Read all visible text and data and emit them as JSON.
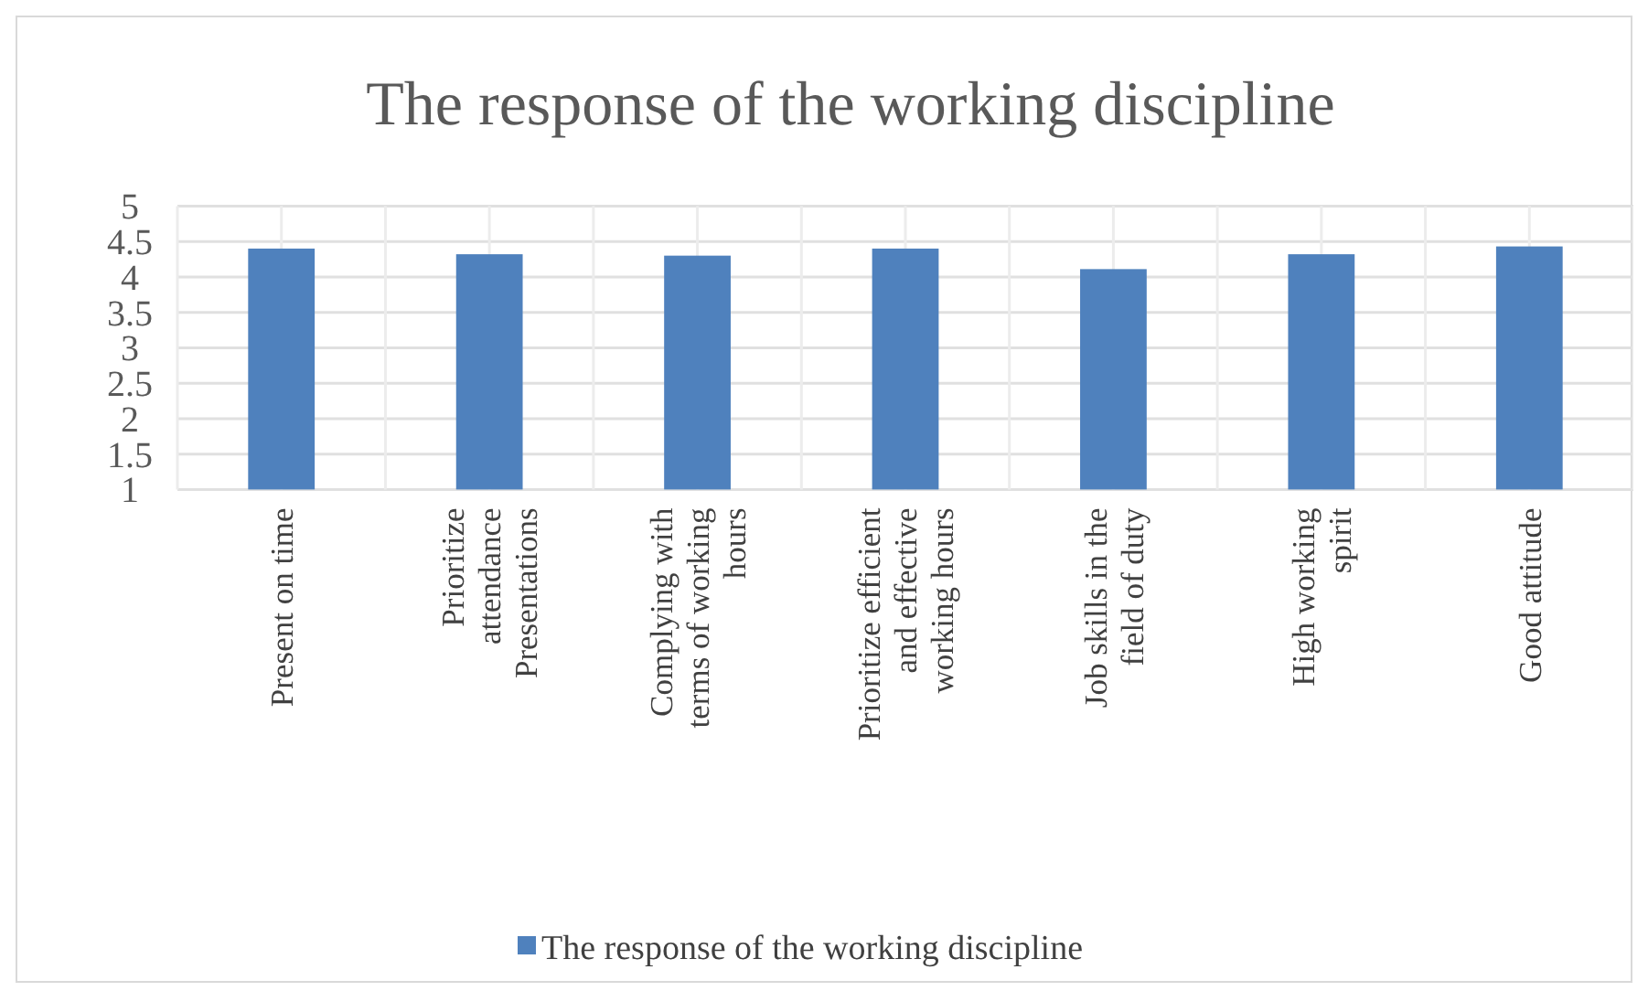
{
  "chart_data": {
    "type": "bar",
    "title": "The response of the working discipline",
    "categories": [
      "Present on time",
      "Prioritize\nattendance\nPresentations",
      "Complying with\nterms of working\nhours",
      "Prioritize efficient\nand effective\nworking hours",
      "Job skills in the\nfield of duty",
      "High working\nspirit",
      "Good attitude"
    ],
    "series": [
      {
        "name": "The response of the working discipline",
        "color": "#4f81bd",
        "values": [
          4.4,
          4.32,
          4.3,
          4.4,
          4.11,
          4.32,
          4.43
        ]
      }
    ],
    "ylim": [
      1,
      5
    ],
    "yticks": [
      1,
      1.5,
      2,
      2.5,
      3,
      3.5,
      4,
      4.5,
      5
    ],
    "grid": true,
    "legend": "bottom"
  }
}
